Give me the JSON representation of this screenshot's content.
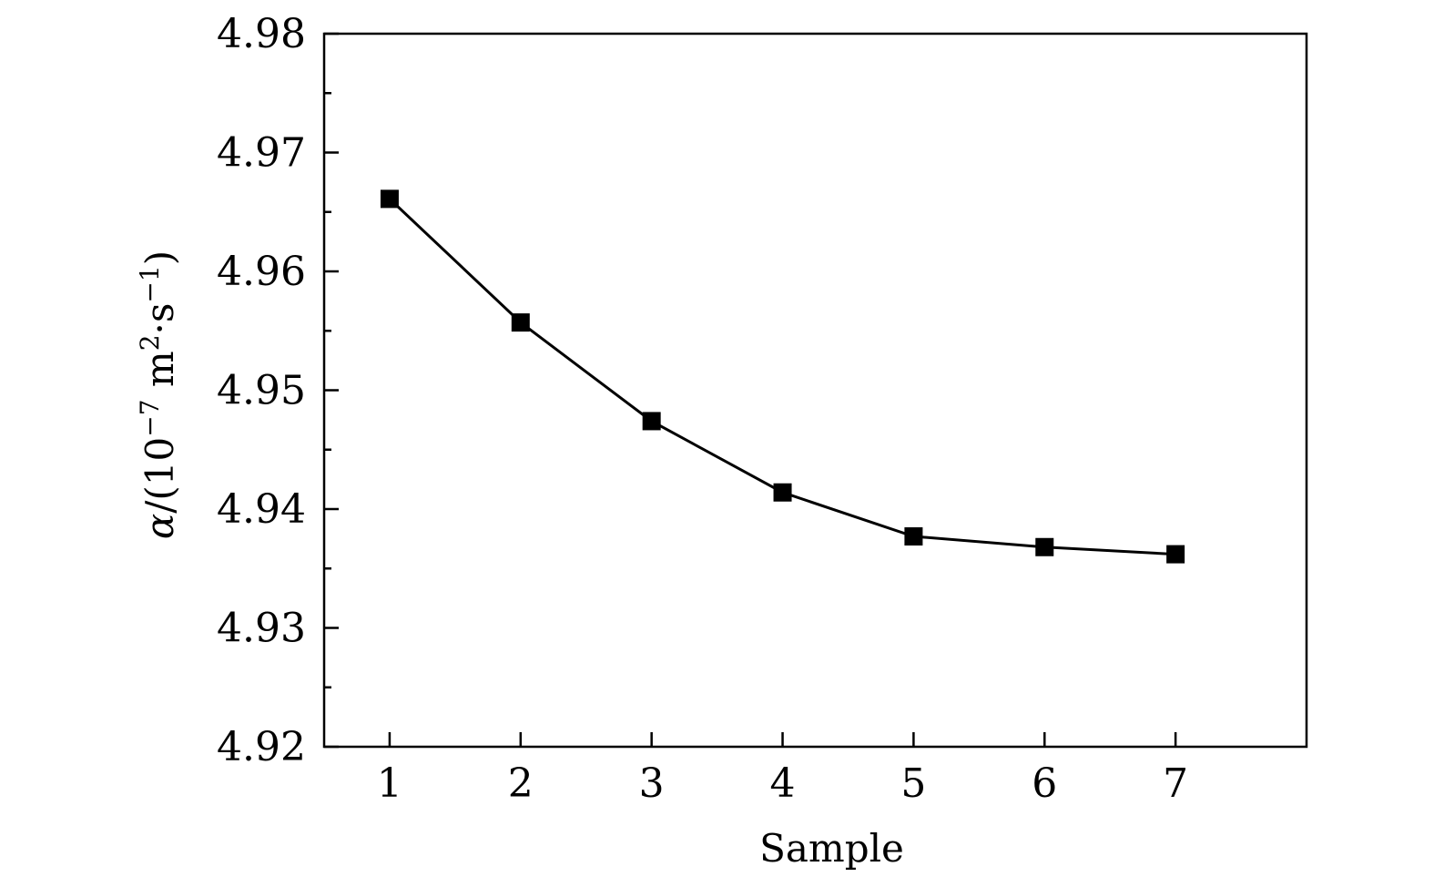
{
  "chart_data": {
    "type": "line",
    "title": "",
    "xlabel": "Sample",
    "ylabel": "α/(10⁻⁷ m²·s⁻¹)",
    "ylabel_parts": {
      "alpha": "α",
      "prefix": "/(10",
      "exp1": "−7",
      "unit_m": " m",
      "exp2": "2",
      "unit_s": "·s",
      "exp3": "−1",
      "close": ")"
    },
    "xlim": [
      0.5,
      8.0
    ],
    "ylim": [
      4.92,
      4.98
    ],
    "x": [
      1,
      2,
      3,
      4,
      5,
      6,
      7
    ],
    "x_tick_labels": [
      "1",
      "2",
      "3",
      "4",
      "5",
      "6",
      "7"
    ],
    "y_ticks": [
      4.92,
      4.93,
      4.94,
      4.95,
      4.96,
      4.97,
      4.98
    ],
    "y_tick_labels": [
      "4.92",
      "4.93",
      "4.94",
      "4.95",
      "4.96",
      "4.97",
      "4.98"
    ],
    "y_minor_ticks": [
      4.925,
      4.935,
      4.945,
      4.955,
      4.965,
      4.975
    ],
    "series": [
      {
        "values": [
          4.9661,
          4.9557,
          4.9474,
          4.9414,
          4.9377,
          4.9368,
          4.9362
        ],
        "color": "#000000",
        "marker": "square"
      }
    ],
    "grid": false,
    "legend": "none"
  }
}
